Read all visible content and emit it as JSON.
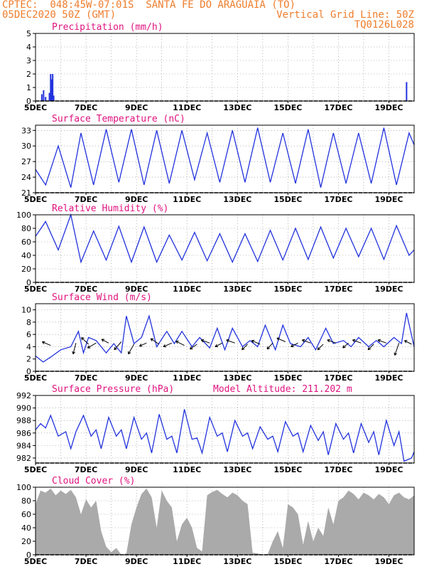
{
  "header": {
    "line1_left": "CPTEC:  048:45W-07:01S  SANTA FE DO ARAGUAIA (TO)",
    "line2_left": "05DEC2020 50Z (GMT)",
    "line2_right": "Vertical Grid Line: 50Z",
    "line3_right": "TQ0126L028"
  },
  "colors": {
    "header": "#ee7d2c",
    "title": "#e0137f",
    "line": "#2233dd",
    "cloud": "#aaaaaa",
    "grid": "#888888"
  },
  "x_axis": {
    "start_day": 5,
    "end_day": 20,
    "ticks": [
      {
        "day": 5,
        "label": "5DEC"
      },
      {
        "day": 7,
        "label": "7DEC"
      },
      {
        "day": 9,
        "label": "9DEC"
      },
      {
        "day": 11,
        "label": "11DEC"
      },
      {
        "day": 13,
        "label": "13DEC"
      },
      {
        "day": 15,
        "label": "15DEC"
      },
      {
        "day": 17,
        "label": "17DEC"
      },
      {
        "day": 19,
        "label": "19DEC"
      }
    ]
  },
  "chart_data": [
    {
      "type": "bar",
      "title": "Precipitation (mm/h)",
      "ylim": [
        0,
        5
      ],
      "yticks": [
        "0",
        "1",
        "2",
        "3",
        "4",
        "5"
      ],
      "points": [
        [
          5.25,
          0.5
        ],
        [
          5.32,
          0.8
        ],
        [
          5.4,
          0.3
        ],
        [
          5.55,
          0.6
        ],
        [
          5.6,
          2.0
        ],
        [
          5.64,
          1.6
        ],
        [
          5.68,
          2.0
        ],
        [
          5.72,
          0.4
        ],
        [
          19.7,
          1.4
        ]
      ]
    },
    {
      "type": "line",
      "title": "Surface Temperature (nC)",
      "ylim": [
        21,
        34
      ],
      "yticks": [
        "21",
        "24",
        "27",
        "30",
        "33"
      ],
      "points": [
        [
          5.0,
          25.5
        ],
        [
          5.4,
          22.5
        ],
        [
          5.9,
          30.0
        ],
        [
          6.4,
          22.0
        ],
        [
          6.8,
          32.5
        ],
        [
          7.3,
          22.5
        ],
        [
          7.8,
          33.2
        ],
        [
          8.3,
          23.0
        ],
        [
          8.8,
          33.2
        ],
        [
          9.3,
          22.5
        ],
        [
          9.8,
          33.0
        ],
        [
          10.3,
          22.8
        ],
        [
          10.8,
          33.0
        ],
        [
          11.3,
          23.5
        ],
        [
          11.8,
          32.5
        ],
        [
          12.3,
          23.0
        ],
        [
          12.8,
          33.0
        ],
        [
          13.3,
          23.0
        ],
        [
          13.8,
          33.5
        ],
        [
          14.3,
          23.0
        ],
        [
          14.8,
          32.5
        ],
        [
          15.3,
          22.8
        ],
        [
          15.8,
          33.2
        ],
        [
          16.3,
          22.0
        ],
        [
          16.8,
          32.5
        ],
        [
          17.3,
          22.8
        ],
        [
          17.8,
          32.5
        ],
        [
          18.3,
          22.8
        ],
        [
          18.8,
          33.5
        ],
        [
          19.3,
          22.5
        ],
        [
          19.8,
          32.5
        ],
        [
          20.0,
          30.2
        ]
      ]
    },
    {
      "type": "line",
      "title": "Relative Humidity (%)",
      "ylim": [
        0,
        100
      ],
      "yticks": [
        "0",
        "20",
        "40",
        "60",
        "80",
        "100"
      ],
      "points": [
        [
          5.0,
          68
        ],
        [
          5.4,
          90
        ],
        [
          5.9,
          48
        ],
        [
          6.4,
          100
        ],
        [
          6.8,
          30
        ],
        [
          7.3,
          76
        ],
        [
          7.8,
          33
        ],
        [
          8.3,
          83
        ],
        [
          8.8,
          30
        ],
        [
          9.3,
          82
        ],
        [
          9.8,
          30
        ],
        [
          10.3,
          70
        ],
        [
          10.8,
          33
        ],
        [
          11.3,
          74
        ],
        [
          11.8,
          32
        ],
        [
          12.3,
          72
        ],
        [
          12.8,
          30
        ],
        [
          13.3,
          72
        ],
        [
          13.8,
          31
        ],
        [
          14.3,
          77
        ],
        [
          14.8,
          33
        ],
        [
          15.3,
          80
        ],
        [
          15.8,
          34
        ],
        [
          16.3,
          82
        ],
        [
          16.8,
          36
        ],
        [
          17.3,
          80
        ],
        [
          17.8,
          38
        ],
        [
          18.3,
          80
        ],
        [
          18.8,
          34
        ],
        [
          19.3,
          84
        ],
        [
          19.8,
          40
        ],
        [
          20.0,
          48
        ]
      ]
    },
    {
      "type": "line",
      "title": "Surface Wind (m/s)",
      "ylim": [
        0,
        11
      ],
      "yticks": [
        "0",
        "2",
        "4",
        "6",
        "8",
        "10"
      ],
      "points": [
        [
          5.0,
          2.5
        ],
        [
          5.3,
          1.5
        ],
        [
          5.6,
          2.3
        ],
        [
          6.0,
          3.5
        ],
        [
          6.4,
          4.0
        ],
        [
          6.7,
          6.5
        ],
        [
          6.9,
          3.0
        ],
        [
          7.1,
          5.5
        ],
        [
          7.4,
          5.0
        ],
        [
          7.8,
          3.0
        ],
        [
          8.1,
          4.5
        ],
        [
          8.4,
          3.0
        ],
        [
          8.6,
          9.0
        ],
        [
          8.9,
          4.5
        ],
        [
          9.2,
          5.5
        ],
        [
          9.5,
          9.0
        ],
        [
          9.8,
          4.0
        ],
        [
          10.2,
          6.5
        ],
        [
          10.5,
          4.5
        ],
        [
          10.8,
          6.5
        ],
        [
          11.2,
          4.0
        ],
        [
          11.5,
          5.5
        ],
        [
          11.9,
          3.8
        ],
        [
          12.2,
          7.0
        ],
        [
          12.5,
          3.5
        ],
        [
          12.8,
          7.0
        ],
        [
          13.2,
          4.0
        ],
        [
          13.5,
          5.0
        ],
        [
          13.8,
          4.0
        ],
        [
          14.1,
          7.5
        ],
        [
          14.5,
          3.5
        ],
        [
          14.8,
          7.5
        ],
        [
          15.1,
          4.5
        ],
        [
          15.5,
          4.0
        ],
        [
          15.8,
          5.5
        ],
        [
          16.1,
          3.5
        ],
        [
          16.5,
          7.0
        ],
        [
          16.8,
          4.5
        ],
        [
          17.2,
          5.0
        ],
        [
          17.5,
          4.0
        ],
        [
          17.8,
          5.5
        ],
        [
          18.2,
          4.0
        ],
        [
          18.5,
          5.0
        ],
        [
          18.8,
          4.0
        ],
        [
          19.2,
          5.5
        ],
        [
          19.5,
          4.5
        ],
        [
          19.7,
          9.5
        ],
        [
          20.0,
          4.0
        ]
      ],
      "vectors": [
        [
          5.6,
          4.2,
          -0.6,
          0.6
        ],
        [
          6.6,
          4.6,
          -0.2,
          -1.8
        ],
        [
          7.1,
          4.4,
          -0.5,
          1.1
        ],
        [
          7.4,
          4.6,
          -0.6,
          -0.8
        ],
        [
          7.9,
          4.6,
          -0.5,
          0.6
        ],
        [
          8.4,
          4.8,
          -0.5,
          -1.3
        ],
        [
          8.9,
          4.4,
          -0.4,
          -1.6
        ],
        [
          9.4,
          4.6,
          -0.5,
          -0.5
        ],
        [
          9.9,
          4.4,
          -0.6,
          0.9
        ],
        [
          10.4,
          4.6,
          -0.6,
          -0.6
        ],
        [
          10.9,
          4.2,
          -0.6,
          0.7
        ],
        [
          11.4,
          4.4,
          -0.5,
          -0.8
        ],
        [
          11.9,
          4.6,
          -0.6,
          0.5
        ],
        [
          12.4,
          4.6,
          -0.5,
          -0.6
        ],
        [
          12.9,
          4.6,
          -0.6,
          0.5
        ],
        [
          13.4,
          4.4,
          -0.4,
          -0.9
        ],
        [
          13.9,
          4.4,
          -0.6,
          0.6
        ],
        [
          14.4,
          4.6,
          -0.4,
          -1.0
        ],
        [
          14.9,
          4.8,
          -0.6,
          0.6
        ],
        [
          15.4,
          4.6,
          -0.5,
          -0.6
        ],
        [
          15.9,
          4.6,
          -0.6,
          0.5
        ],
        [
          16.4,
          4.4,
          -0.4,
          -0.9
        ],
        [
          16.9,
          4.6,
          -0.6,
          0.5
        ],
        [
          17.4,
          4.6,
          -0.4,
          -0.8
        ],
        [
          17.9,
          4.6,
          -0.6,
          0.5
        ],
        [
          18.4,
          4.4,
          -0.4,
          -0.9
        ],
        [
          18.9,
          4.6,
          -0.6,
          0.5
        ],
        [
          19.4,
          4.6,
          -0.3,
          -2.0
        ],
        [
          19.9,
          4.4,
          -0.5,
          0.6
        ]
      ]
    },
    {
      "type": "line",
      "title": "Surface Pressure (hPa)",
      "subtitle": "Model Altitude: 211.202 m",
      "ylim": [
        981.2,
        992
      ],
      "yticks": [
        "982",
        "984",
        "986",
        "988",
        "990",
        "992"
      ],
      "points": [
        [
          5.0,
          986.5
        ],
        [
          5.2,
          987.5
        ],
        [
          5.4,
          986.8
        ],
        [
          5.6,
          988.8
        ],
        [
          5.9,
          985.5
        ],
        [
          6.2,
          986.2
        ],
        [
          6.4,
          983.5
        ],
        [
          6.6,
          986.2
        ],
        [
          6.9,
          988.8
        ],
        [
          7.2,
          985.5
        ],
        [
          7.4,
          986.5
        ],
        [
          7.6,
          983.5
        ],
        [
          7.9,
          988.5
        ],
        [
          8.2,
          985.5
        ],
        [
          8.4,
          986.5
        ],
        [
          8.6,
          983.5
        ],
        [
          8.9,
          988.5
        ],
        [
          9.2,
          985.0
        ],
        [
          9.4,
          986.0
        ],
        [
          9.6,
          982.8
        ],
        [
          9.9,
          989.0
        ],
        [
          10.2,
          985.0
        ],
        [
          10.4,
          985.5
        ],
        [
          10.6,
          982.8
        ],
        [
          10.9,
          989.8
        ],
        [
          11.2,
          985.0
        ],
        [
          11.4,
          985.2
        ],
        [
          11.6,
          982.8
        ],
        [
          11.9,
          988.5
        ],
        [
          12.2,
          985.5
        ],
        [
          12.4,
          986.0
        ],
        [
          12.6,
          983.0
        ],
        [
          12.9,
          988.0
        ],
        [
          13.2,
          985.5
        ],
        [
          13.4,
          986.0
        ],
        [
          13.6,
          983.5
        ],
        [
          13.9,
          987.0
        ],
        [
          14.2,
          985.0
        ],
        [
          14.4,
          985.5
        ],
        [
          14.6,
          983.0
        ],
        [
          14.9,
          987.8
        ],
        [
          15.2,
          985.5
        ],
        [
          15.4,
          986.0
        ],
        [
          15.6,
          983.0
        ],
        [
          15.9,
          987.2
        ],
        [
          16.2,
          984.8
        ],
        [
          16.4,
          986.2
        ],
        [
          16.6,
          982.5
        ],
        [
          16.9,
          987.5
        ],
        [
          17.2,
          985.0
        ],
        [
          17.4,
          986.0
        ],
        [
          17.6,
          982.8
        ],
        [
          17.9,
          987.5
        ],
        [
          18.2,
          984.5
        ],
        [
          18.4,
          986.2
        ],
        [
          18.6,
          982.5
        ],
        [
          18.9,
          988.0
        ],
        [
          19.2,
          984.0
        ],
        [
          19.4,
          986.2
        ],
        [
          19.6,
          981.5
        ],
        [
          19.9,
          982.0
        ],
        [
          20.0,
          983.0
        ]
      ]
    },
    {
      "type": "area",
      "title": "Cloud Cover (%)",
      "ylim": [
        0,
        100
      ],
      "yticks": [
        "0",
        "20",
        "40",
        "60",
        "80",
        "100"
      ],
      "points": [
        [
          5.0,
          75
        ],
        [
          5.2,
          95
        ],
        [
          5.4,
          92
        ],
        [
          5.6,
          98
        ],
        [
          5.8,
          88
        ],
        [
          6.0,
          95
        ],
        [
          6.2,
          90
        ],
        [
          6.4,
          96
        ],
        [
          6.6,
          85
        ],
        [
          6.8,
          60
        ],
        [
          7.0,
          82
        ],
        [
          7.2,
          70
        ],
        [
          7.4,
          80
        ],
        [
          7.6,
          35
        ],
        [
          7.8,
          12
        ],
        [
          8.0,
          4
        ],
        [
          8.2,
          10
        ],
        [
          8.4,
          0
        ],
        [
          8.6,
          2
        ],
        [
          8.8,
          45
        ],
        [
          9.0,
          70
        ],
        [
          9.2,
          90
        ],
        [
          9.4,
          98
        ],
        [
          9.6,
          85
        ],
        [
          9.8,
          40
        ],
        [
          10.0,
          95
        ],
        [
          10.2,
          80
        ],
        [
          10.4,
          70
        ],
        [
          10.6,
          20
        ],
        [
          10.8,
          45
        ],
        [
          11.0,
          55
        ],
        [
          11.2,
          40
        ],
        [
          11.4,
          10
        ],
        [
          11.6,
          5
        ],
        [
          11.8,
          88
        ],
        [
          12.0,
          93
        ],
        [
          12.2,
          96
        ],
        [
          12.4,
          90
        ],
        [
          12.6,
          85
        ],
        [
          12.8,
          92
        ],
        [
          13.0,
          88
        ],
        [
          13.2,
          80
        ],
        [
          13.4,
          75
        ],
        [
          13.6,
          3
        ],
        [
          13.8,
          2
        ],
        [
          14.0,
          0
        ],
        [
          14.2,
          1
        ],
        [
          14.4,
          20
        ],
        [
          14.6,
          35
        ],
        [
          14.8,
          10
        ],
        [
          15.0,
          75
        ],
        [
          15.2,
          70
        ],
        [
          15.4,
          60
        ],
        [
          15.6,
          15
        ],
        [
          15.8,
          50
        ],
        [
          16.0,
          20
        ],
        [
          16.2,
          40
        ],
        [
          16.4,
          28
        ],
        [
          16.6,
          70
        ],
        [
          16.8,
          45
        ],
        [
          17.0,
          80
        ],
        [
          17.2,
          85
        ],
        [
          17.4,
          95
        ],
        [
          17.6,
          90
        ],
        [
          17.8,
          82
        ],
        [
          18.0,
          92
        ],
        [
          18.2,
          88
        ],
        [
          18.4,
          82
        ],
        [
          18.6,
          90
        ],
        [
          18.8,
          85
        ],
        [
          19.0,
          75
        ],
        [
          19.2,
          88
        ],
        [
          19.4,
          92
        ],
        [
          19.6,
          85
        ],
        [
          19.8,
          82
        ],
        [
          20.0,
          88
        ]
      ]
    }
  ]
}
